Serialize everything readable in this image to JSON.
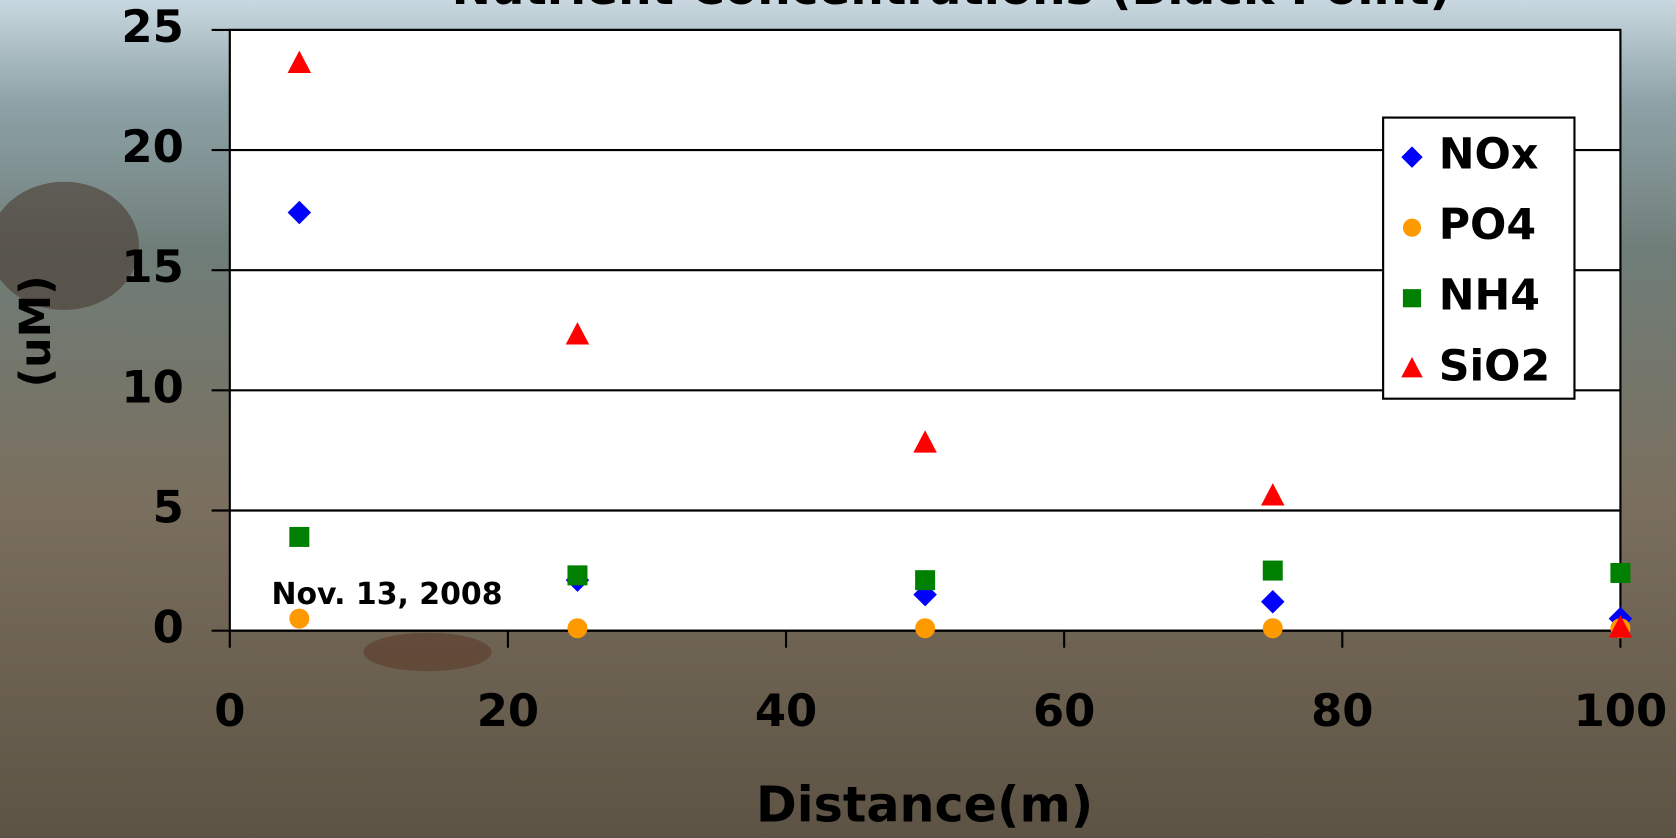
{
  "chart_data": {
    "type": "scatter",
    "title": "Nutrient Concentrations (Black Point)",
    "y_label": "(uM)",
    "x_label": "Distance(m)",
    "annotation": "Nov. 13, 2008",
    "x": [
      5,
      25,
      50,
      75,
      100
    ],
    "series": [
      {
        "name": "NOx",
        "color": "#0000ff",
        "marker": "diamond",
        "values": [
          17.4,
          2.1,
          1.5,
          1.2,
          0.5
        ]
      },
      {
        "name": "PO4",
        "color": "#ff9900",
        "marker": "circle",
        "values": [
          0.5,
          0.1,
          0.1,
          0.1,
          0.1
        ]
      },
      {
        "name": "NH4",
        "color": "#008000",
        "marker": "square",
        "values": [
          3.9,
          2.3,
          2.1,
          2.5,
          2.4
        ]
      },
      {
        "name": "SiO2",
        "color": "#ff0000",
        "marker": "triangle",
        "values": [
          23.6,
          12.3,
          7.8,
          5.6,
          0.1
        ]
      }
    ],
    "xlim": [
      0,
      100
    ],
    "xticks": [
      0,
      20,
      40,
      60,
      80,
      100
    ],
    "ylim": [
      0,
      25
    ],
    "yticks": [
      0,
      5,
      10,
      15,
      20,
      25
    ],
    "grid": true,
    "legend": "upper right"
  }
}
